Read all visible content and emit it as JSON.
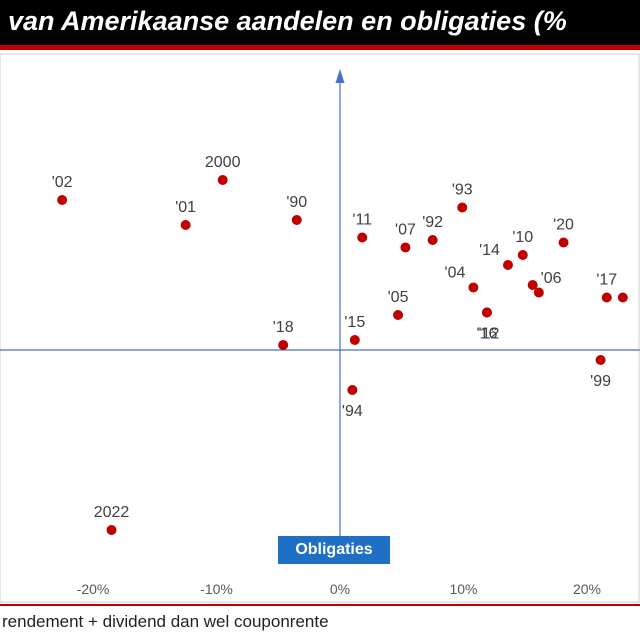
{
  "title": "van Amerikaanse aandelen en obligaties (%",
  "footnote": "rendement + dividend dan wel couponrente",
  "chart_data": {
    "type": "scatter",
    "title": "van Amerikaanse aandelen en obligaties (%",
    "xlabel": "Obligaties",
    "ylabel": "",
    "xlim": [
      -27,
      24
    ],
    "x_ticks": [
      -20,
      -10,
      0,
      10,
      20
    ],
    "x_tick_labels": [
      "-20%",
      "-10%",
      "0%",
      "10%",
      "20%"
    ],
    "points": [
      {
        "label": "'02",
        "x": -22.5,
        "y": 0.6
      },
      {
        "label": "2000",
        "x": -9.5,
        "y": 0.68
      },
      {
        "label": "'01",
        "x": -12.5,
        "y": 0.5
      },
      {
        "label": "'90",
        "x": -3.5,
        "y": 0.52
      },
      {
        "label": "'11",
        "x": 1.8,
        "y": 0.45
      },
      {
        "label": "'07",
        "x": 5.3,
        "y": 0.41
      },
      {
        "label": "'92",
        "x": 7.5,
        "y": 0.44
      },
      {
        "label": "'93",
        "x": 9.9,
        "y": 0.57
      },
      {
        "label": "'10",
        "x": 14.8,
        "y": 0.38
      },
      {
        "label": "'20",
        "x": 18.1,
        "y": 0.43
      },
      {
        "label": "'14",
        "x": 13.6,
        "y": 0.34
      },
      {
        "label": "'04",
        "x": 10.8,
        "y": 0.25
      },
      {
        "label": "'06",
        "x": 15.6,
        "y": 0.26
      },
      {
        "label": "'06",
        "x": 16.1,
        "y": 0.23
      },
      {
        "label": "'17",
        "x": 21.6,
        "y": 0.21
      },
      {
        "label": "'17",
        "x": 22.9,
        "y": 0.21
      },
      {
        "label": "'05",
        "x": 4.7,
        "y": 0.14
      },
      {
        "label": "'12",
        "x": 11.9,
        "y": 0.15
      },
      {
        "label": "'16",
        "x": 11.9,
        "y": 0.15
      },
      {
        "label": "'18",
        "x": -4.6,
        "y": 0.02
      },
      {
        "label": "'15",
        "x": 1.2,
        "y": 0.04
      },
      {
        "label": "'99",
        "x": 21.1,
        "y": -0.04
      },
      {
        "label": "'94",
        "x": 1.0,
        "y": -0.16
      },
      {
        "label": "2022",
        "x": -18.5,
        "y": -0.72
      }
    ],
    "point_labels": [
      {
        "text": "'02",
        "pos": "above"
      },
      {
        "text": "2000",
        "pos": "above"
      },
      {
        "text": "'01",
        "pos": "above"
      },
      {
        "text": "'90",
        "pos": "above"
      },
      {
        "text": "'11",
        "pos": "above"
      },
      {
        "text": "'07",
        "pos": "above"
      },
      {
        "text": "'92",
        "pos": "above"
      },
      {
        "text": "'93",
        "pos": "above"
      },
      {
        "text": "'10",
        "pos": "above"
      },
      {
        "text": "'20",
        "pos": "above"
      },
      {
        "text": "'14",
        "pos": "left"
      },
      {
        "text": "'04",
        "pos": "left"
      },
      {
        "text": "'06",
        "pos": "right"
      },
      {
        "text": "",
        "pos": "none"
      },
      {
        "text": "'17",
        "pos": "above"
      },
      {
        "text": "",
        "pos": "none"
      },
      {
        "text": "'05",
        "pos": "above"
      },
      {
        "text": "'12",
        "pos": "below-right"
      },
      {
        "text": "'16",
        "pos": "below"
      },
      {
        "text": "'18",
        "pos": "above"
      },
      {
        "text": "'15",
        "pos": "above"
      },
      {
        "text": "'99",
        "pos": "below"
      },
      {
        "text": "'94",
        "pos": "below"
      },
      {
        "text": "2022",
        "pos": "above"
      }
    ],
    "colors": {
      "point": "#c00000",
      "axis": "#4472c4",
      "badge": "#1f6fc5",
      "title_bg": "#000000",
      "accent": "#c00000"
    }
  }
}
